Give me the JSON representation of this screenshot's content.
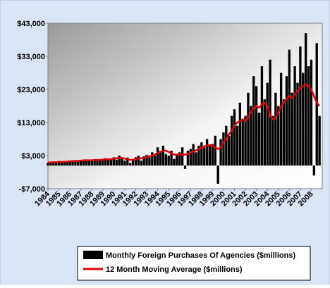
{
  "chart_data": {
    "type": "bar-line",
    "x": [
      1984,
      1984.25,
      1984.5,
      1984.75,
      1985,
      1985.25,
      1985.5,
      1985.75,
      1986,
      1986.25,
      1986.5,
      1986.75,
      1987,
      1987.25,
      1987.5,
      1987.75,
      1988,
      1988.25,
      1988.5,
      1988.75,
      1989,
      1989.25,
      1989.5,
      1989.75,
      1990,
      1990.25,
      1990.5,
      1990.75,
      1991,
      1991.25,
      1991.5,
      1991.75,
      1992,
      1992.25,
      1992.5,
      1992.75,
      1993,
      1993.25,
      1993.5,
      1993.75,
      1994,
      1994.25,
      1994.5,
      1994.75,
      1995,
      1995.25,
      1995.5,
      1995.75,
      1996,
      1996.25,
      1996.5,
      1996.75,
      1997,
      1997.25,
      1997.5,
      1997.75,
      1998,
      1998.25,
      1998.5,
      1998.75,
      1999,
      1999.25,
      1999.5,
      1999.75,
      2000,
      2000.25,
      2000.5,
      2000.75,
      2001,
      2001.25,
      2001.5,
      2001.75,
      2002,
      2002.25,
      2002.5,
      2002.75,
      2003,
      2003.25,
      2003.5,
      2003.75,
      2004,
      2004.25,
      2004.5,
      2004.75,
      2005,
      2005.25,
      2005.5,
      2005.75,
      2006,
      2006.25,
      2006.5,
      2006.75,
      2007,
      2007.25,
      2007.5,
      2007.75,
      2008,
      2008.25,
      2008.5,
      2008.75
    ],
    "series": [
      {
        "name": "Monthly Foreign Purchases Of Agencies ($millions)",
        "color": "#000000",
        "kind": "bar",
        "values": [
          800,
          1000,
          900,
          1100,
          1000,
          1200,
          1100,
          1300,
          1300,
          1500,
          1200,
          1600,
          1400,
          1800,
          1500,
          1700,
          1500,
          1900,
          1400,
          1800,
          1700,
          2200,
          1600,
          2000,
          2500,
          1800,
          3000,
          2200,
          1500,
          2400,
          800,
          2000,
          2500,
          3000,
          1500,
          2800,
          3200,
          2500,
          4000,
          3000,
          5500,
          4000,
          6000,
          3500,
          3000,
          4500,
          2000,
          3500,
          4000,
          5500,
          -1000,
          4500,
          5000,
          6500,
          4000,
          6000,
          7000,
          5500,
          8000,
          6000,
          6500,
          9000,
          -5500,
          8000,
          10000,
          12000,
          9000,
          15000,
          17000,
          12000,
          19000,
          14000,
          15000,
          22000,
          18000,
          27000,
          24000,
          16000,
          30000,
          20000,
          25000,
          32000,
          15000,
          22000,
          18000,
          28000,
          20000,
          27000,
          35000,
          22000,
          30000,
          25000,
          36000,
          28000,
          40000,
          30000,
          32000,
          -3000,
          37000,
          15000
        ]
      },
      {
        "name": "12 Month Moving Average ($millions)",
        "color": "#e00000",
        "kind": "line",
        "values": [
          900,
          950,
          1000,
          1000,
          1100,
          1100,
          1150,
          1200,
          1300,
          1350,
          1400,
          1400,
          1500,
          1550,
          1600,
          1600,
          1600,
          1650,
          1650,
          1700,
          1800,
          1850,
          1900,
          1900,
          2100,
          2200,
          2300,
          2300,
          2100,
          1900,
          1700,
          1700,
          1900,
          2100,
          2200,
          2300,
          2600,
          2800,
          3100,
          3300,
          3800,
          4200,
          4400,
          4500,
          4100,
          3700,
          3300,
          3300,
          3400,
          3300,
          3300,
          3500,
          3900,
          4200,
          4600,
          5000,
          5400,
          5800,
          6000,
          6200,
          6000,
          5500,
          5000,
          5500,
          7000,
          8000,
          9500,
          10500,
          12000,
          13000,
          13500,
          14000,
          13500,
          14500,
          16000,
          17500,
          18000,
          17500,
          18500,
          19000,
          18000,
          15000,
          14000,
          14500,
          16000,
          18000,
          19000,
          20000,
          21000,
          20500,
          21500,
          22500,
          23500,
          24000,
          24500,
          24000,
          23000,
          21000,
          19000,
          18000
        ]
      }
    ],
    "xlim": [
      1984,
      2009
    ],
    "xticks": [
      1984,
      1985,
      1986,
      1987,
      1988,
      1989,
      1990,
      1991,
      1992,
      1993,
      1994,
      1995,
      1996,
      1997,
      1998,
      1999,
      2000,
      2001,
      2002,
      2003,
      2004,
      2005,
      2006,
      2007,
      2008
    ],
    "ylim": [
      -7000,
      43000
    ],
    "yticks": [
      {
        "value": 43000,
        "label": "$43,000"
      },
      {
        "value": 33000,
        "label": "$33,000"
      },
      {
        "value": 23000,
        "label": "$23,000"
      },
      {
        "value": 13000,
        "label": "$13,000"
      },
      {
        "value": 3000,
        "label": "$3,000"
      },
      {
        "value": -7000,
        "label": "-$7,000"
      }
    ],
    "legend": "bottom"
  }
}
